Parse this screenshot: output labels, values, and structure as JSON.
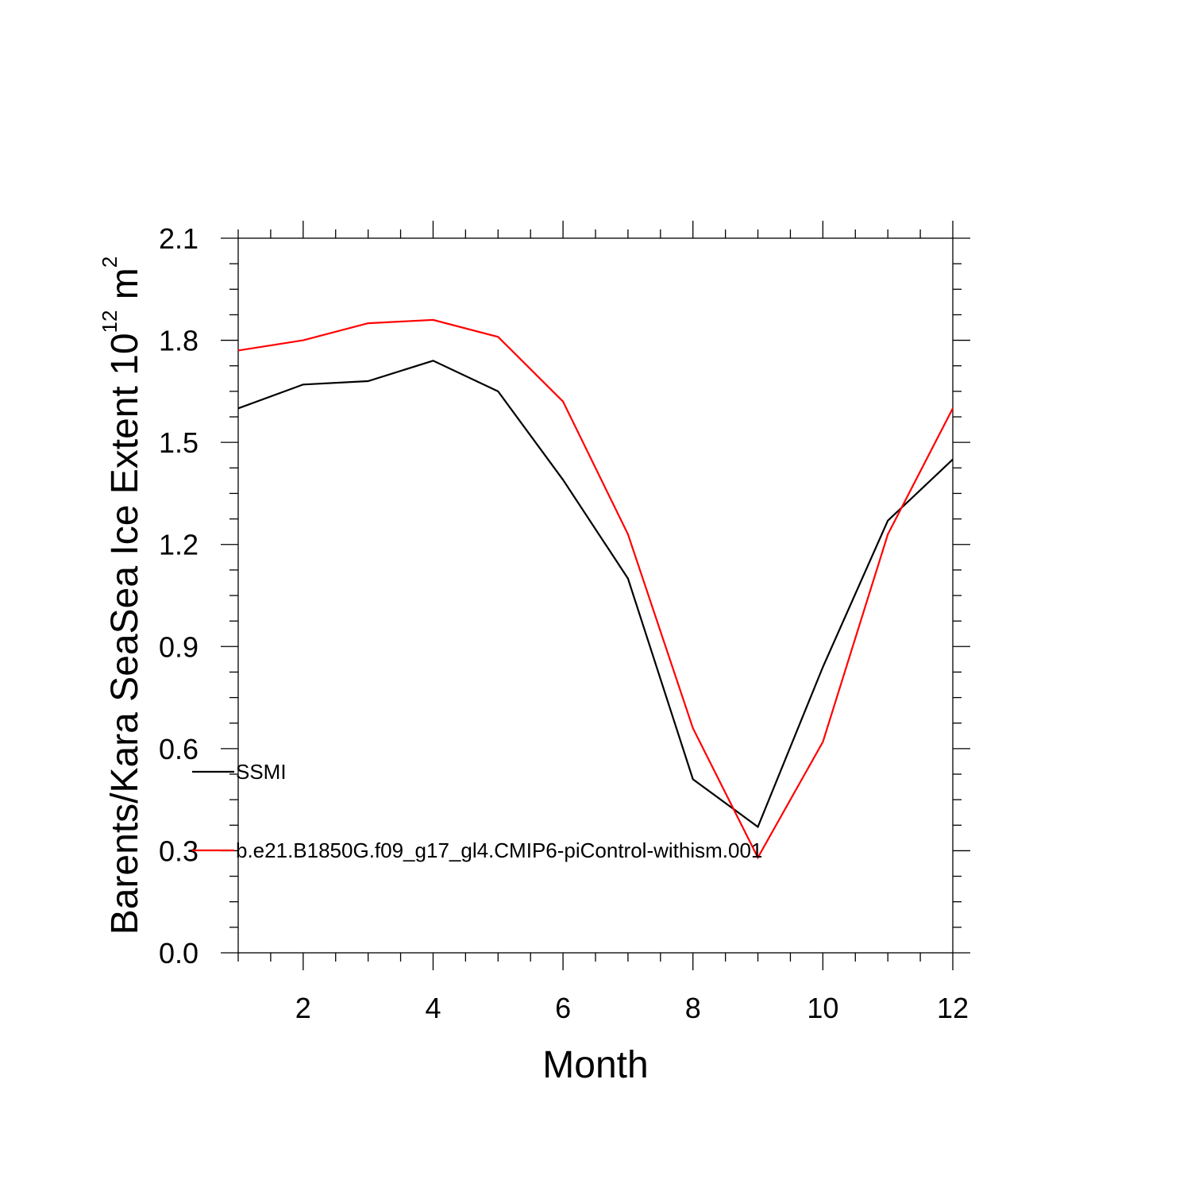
{
  "chart_data": {
    "type": "line",
    "xlabel": "Month",
    "ylabel": "Barents/Kara SeaSea Ice Extent 10",
    "ylabel_sup1": "12",
    "ylabel_mid": " m",
    "ylabel_sup2": "2",
    "xlim": [
      1,
      12
    ],
    "ylim": [
      0.0,
      2.1
    ],
    "xticks": [
      2,
      4,
      6,
      8,
      10,
      12
    ],
    "xtick_labels": [
      "2",
      "4",
      "6",
      "8",
      "10",
      "12"
    ],
    "yticks": [
      0.0,
      0.3,
      0.6,
      0.9,
      1.2,
      1.5,
      1.8,
      2.1
    ],
    "ytick_labels": [
      "0.0",
      "0.3",
      "0.6",
      "0.9",
      "1.2",
      "1.5",
      "1.8",
      "2.1"
    ],
    "grid": false,
    "x": [
      1,
      2,
      3,
      4,
      5,
      6,
      7,
      8,
      9,
      10,
      11,
      12
    ],
    "series": [
      {
        "name": "SSMI",
        "color": "#000000",
        "values": [
          1.6,
          1.67,
          1.68,
          1.74,
          1.65,
          1.39,
          1.1,
          0.51,
          0.37,
          0.84,
          1.27,
          1.45
        ]
      },
      {
        "name": "b.e21.B1850G.f09_g17_gl4.CMIP6-piControl-withism.001",
        "color": "#ff0000",
        "values": [
          1.77,
          1.8,
          1.85,
          1.86,
          1.81,
          1.62,
          1.23,
          0.66,
          0.28,
          0.62,
          1.23,
          1.6
        ]
      }
    ]
  }
}
